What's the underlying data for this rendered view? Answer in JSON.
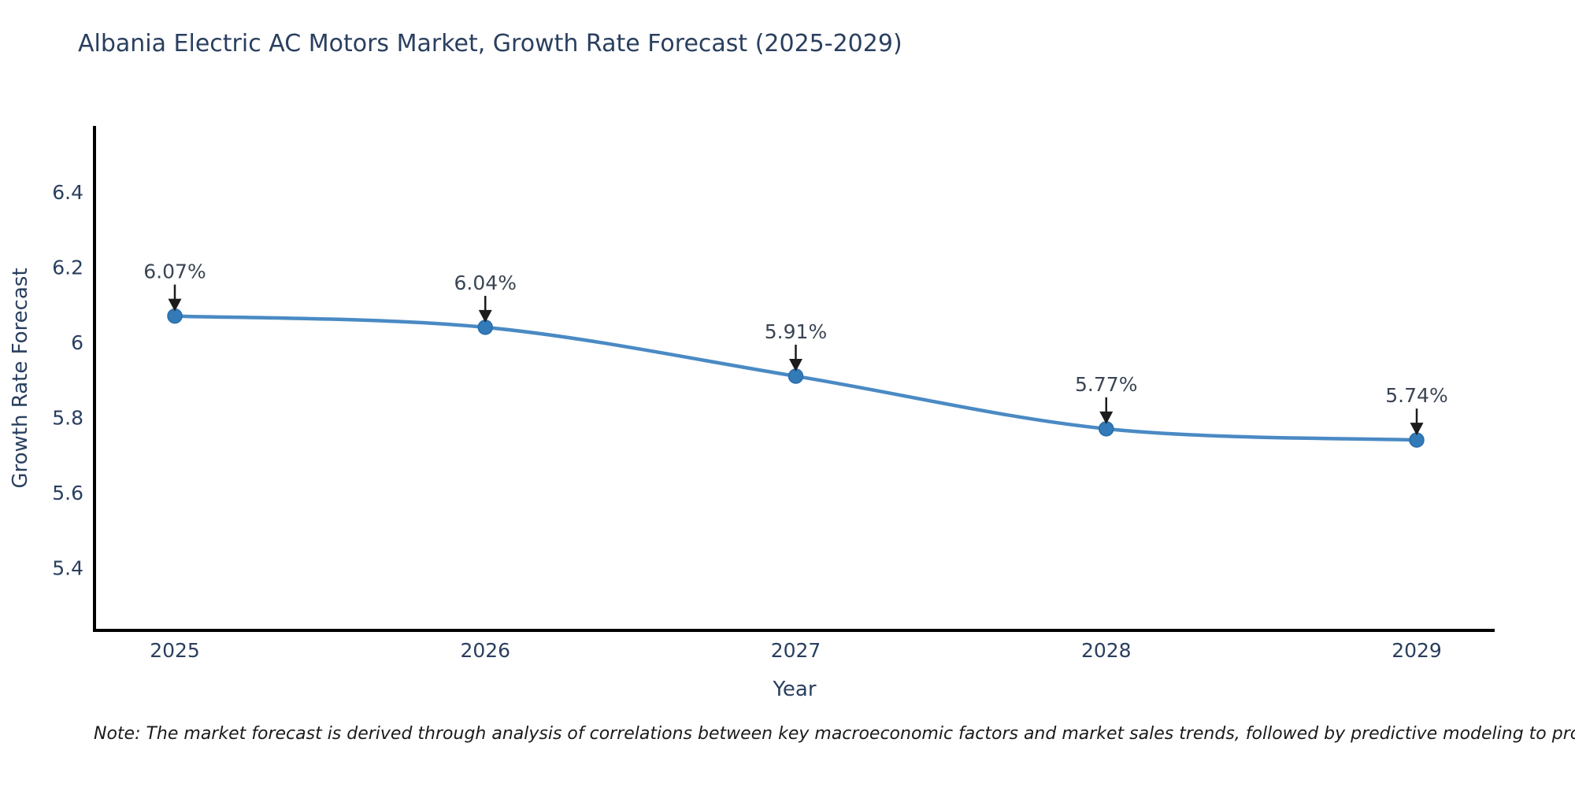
{
  "title": "Albania Electric AC Motors Market, Growth Rate Forecast (2025-2029)",
  "note": "Note: The market forecast is derived through analysis of correlations between key macroeconomic factors and market sales trends, followed by predictive modeling to project future sales",
  "colors": {
    "title_text": "#2a3f5f",
    "axis_text": "#2a3f5f",
    "line": "#4a8ac4",
    "marker_fill": "#337ab8",
    "marker_edge": "#2a6da8",
    "arrow": "#1c1c1c",
    "annotation_text": "#3a4554",
    "axis_line": "#000000",
    "note_text": "#1a1a1a",
    "background": "#ffffff"
  },
  "chart_data": {
    "type": "line",
    "title": "Albania Electric AC Motors Market, Growth Rate Forecast (2025-2029)",
    "xlabel": "Year",
    "ylabel": "Growth Rate Forecast",
    "x": [
      2025,
      2026,
      2027,
      2028,
      2029
    ],
    "values": [
      6.07,
      6.04,
      5.91,
      5.77,
      5.74
    ],
    "point_labels": [
      "6.07%",
      "6.04%",
      "5.91%",
      "5.77%",
      "5.74%"
    ],
    "xtick_labels": [
      "2025",
      "2026",
      "2027",
      "2028",
      "2029"
    ],
    "yticks": [
      6.4,
      6.2,
      6.0,
      5.8,
      5.6,
      5.4
    ],
    "ytick_labels": [
      "6.4",
      "6.2",
      "6",
      "5.8",
      "5.6",
      "5.4"
    ],
    "ylim": [
      5.23,
      6.58
    ],
    "grid": false,
    "legend": false,
    "line_shape": "spline",
    "markers": true,
    "annotations": "arrow-down-labels"
  }
}
